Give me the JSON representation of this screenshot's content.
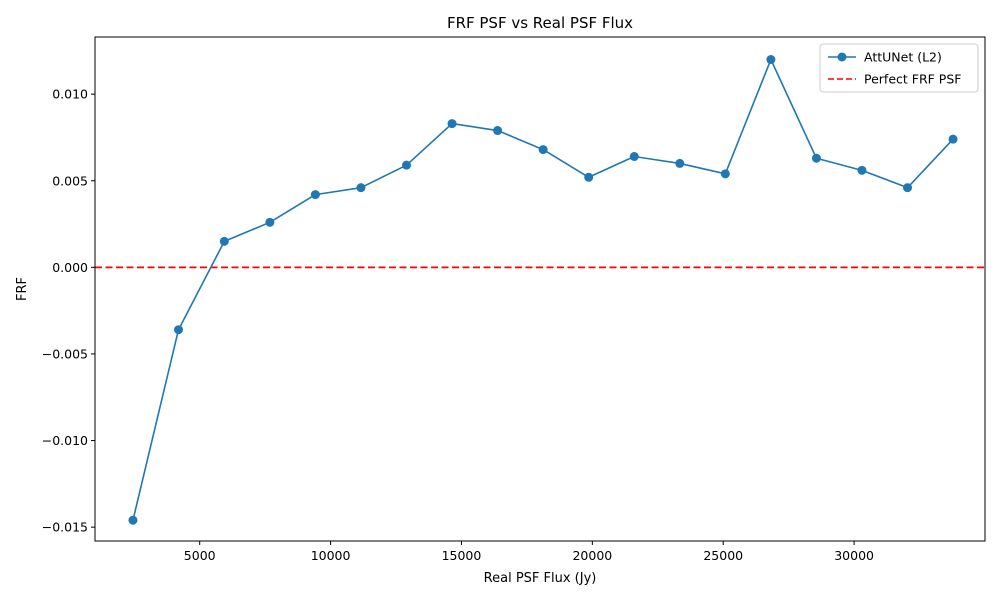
{
  "chart_data": {
    "type": "line",
    "title": "FRF PSF vs Real PSF Flux",
    "xlabel": "Real PSF Flux (Jy)",
    "ylabel": "FRF",
    "xlim": [
      1000,
      35000
    ],
    "ylim": [
      -0.0158,
      0.0133
    ],
    "xticks": [
      {
        "value": 5000,
        "label": "5000"
      },
      {
        "value": 10000,
        "label": "10000"
      },
      {
        "value": 15000,
        "label": "15000"
      },
      {
        "value": 20000,
        "label": "20000"
      },
      {
        "value": 25000,
        "label": "25000"
      },
      {
        "value": 30000,
        "label": "30000"
      }
    ],
    "yticks": [
      {
        "value": -0.015,
        "label": "−0.015"
      },
      {
        "value": -0.01,
        "label": "−0.010"
      },
      {
        "value": -0.005,
        "label": "−0.005"
      },
      {
        "value": 0.0,
        "label": "0.000"
      },
      {
        "value": 0.005,
        "label": "0.005"
      },
      {
        "value": 0.01,
        "label": "0.010"
      }
    ],
    "grid": false,
    "legend_position": "top-right",
    "series": [
      {
        "name": "AttUNet (L2)",
        "color": "#1f77b4",
        "style": "solid-with-markers",
        "x": [
          2450,
          4190,
          5940,
          7680,
          9420,
          11160,
          12900,
          14640,
          16380,
          18120,
          19860,
          21600,
          23340,
          25080,
          26820,
          28560,
          30300,
          32040,
          33780
        ],
        "y": [
          -0.0146,
          -0.0036,
          0.0015,
          0.0026,
          0.0042,
          0.0046,
          0.0059,
          0.0083,
          0.0079,
          0.0068,
          0.0052,
          0.0064,
          0.006,
          0.0054,
          0.012,
          0.0063,
          0.0056,
          0.0046,
          0.0074
        ]
      },
      {
        "name": "Perfect FRF PSF",
        "color": "#ff0000",
        "style": "dashed-horizontal",
        "y_constant": 0.0
      }
    ]
  }
}
